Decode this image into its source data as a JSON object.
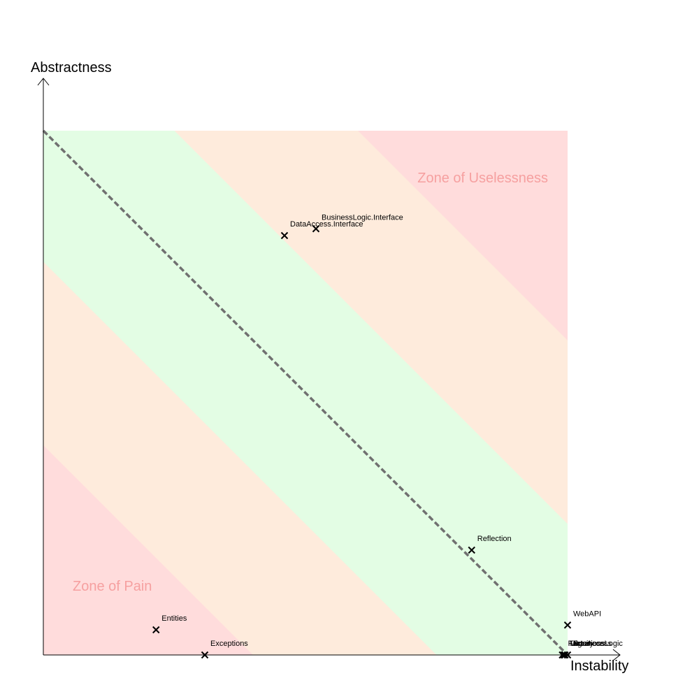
{
  "chart_data": {
    "type": "scatter",
    "title": "",
    "xlabel": "Instability",
    "ylabel": "Abstractness",
    "xlim": [
      0,
      1
    ],
    "ylim": [
      0,
      1
    ],
    "grid": false,
    "main_sequence": {
      "from": [
        0,
        1
      ],
      "to": [
        1,
        0
      ],
      "style": "dashed",
      "color": "#707070"
    },
    "zones": {
      "colors": {
        "pain": "#FFDCDC",
        "warning": "#FEEBDC",
        "ok": "#E3FDE4"
      },
      "bands": [
        {
          "name": "pain",
          "sum_max": 0.4
        },
        {
          "name": "warning",
          "sum_max": 0.75
        },
        {
          "name": "ok",
          "sum_max": 1.25
        },
        {
          "name": "warning",
          "sum_max": 1.6
        },
        {
          "name": "pain",
          "sum_max": 2.0
        }
      ],
      "labels": [
        {
          "text": "Zone of Pain",
          "anchor": "bottom-left",
          "color": "#F6A0A0"
        },
        {
          "text": "Zone of Uselessness",
          "anchor": "top-right",
          "color": "#F6A0A0"
        }
      ]
    },
    "points": [
      {
        "name": "BusinessLogic.Interface",
        "x": 0.52,
        "y": 0.813
      },
      {
        "name": "DataAccess.Interface",
        "x": 0.46,
        "y": 0.8
      },
      {
        "name": "Reflection",
        "x": 0.817,
        "y": 0.2
      },
      {
        "name": "Entities",
        "x": 0.215,
        "y": 0.048
      },
      {
        "name": "Exceptions",
        "x": 0.308,
        "y": 0.0
      },
      {
        "name": "WebAPI",
        "x": 1.0,
        "y": 0.057
      },
      {
        "name": "BusinessLogic",
        "x": 1.0,
        "y": 0.0
      },
      {
        "name": "DataAccess",
        "x": 0.995,
        "y": 0.0
      },
      {
        "name": "Factory",
        "x": 0.99,
        "y": 0.0
      },
      {
        "name": "Migrations",
        "x": 0.993,
        "y": 0.0
      }
    ]
  }
}
